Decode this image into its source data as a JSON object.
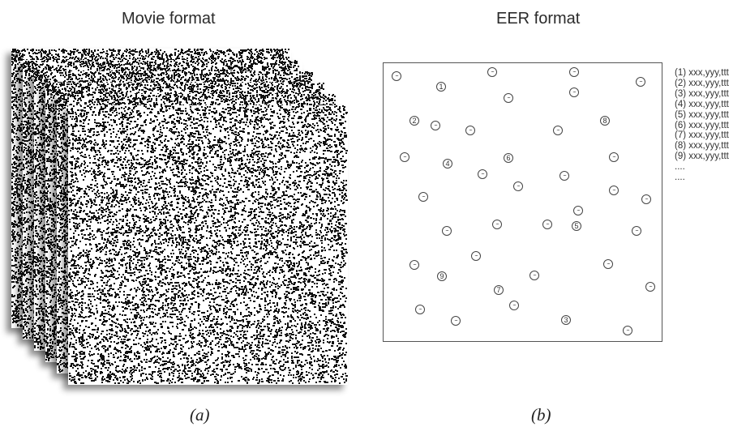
{
  "panel_a": {
    "title": "Movie format",
    "caption": "(a)",
    "frame_count": 6
  },
  "panel_b": {
    "title": "EER format",
    "caption": "(b)",
    "numbered_events": [
      "1",
      "2",
      "3",
      "4",
      "5",
      "6",
      "7",
      "8",
      "9"
    ],
    "unlabeled_event_glyph": "...",
    "event_list": [
      "(1) xxx,yyy,ttt",
      "(2) xxx,yyy,ttt",
      "(3) xxx,yyy,ttt",
      "(4) xxx,yyy,ttt",
      "(5) xxx,yyy,ttt",
      "(6) xxx,yyy,ttt",
      "(7) xxx,yyy,ttt",
      "(8) xxx,yyy,ttt",
      "(9) xxx,yyy,ttt",
      "....",
      "...."
    ]
  }
}
